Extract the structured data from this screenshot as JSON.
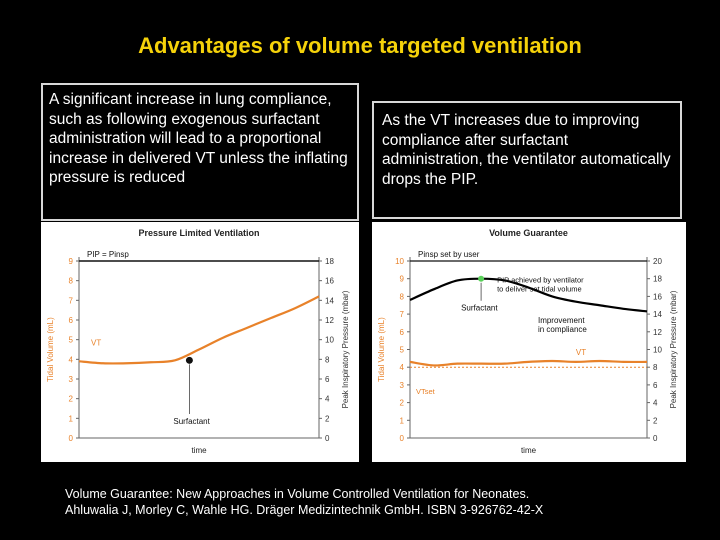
{
  "slide": {
    "title": "Advantages of volume targeted ventilation",
    "box_left_text": "A significant increase in lung compliance, such as following exogenous surfactant administration will lead to a proportional increase in delivered VT unless the inflating pressure is reduced",
    "box_right_text": "As the VT increases due to improving compliance after surfactant administration, the ventilator automatically drops the PIP.",
    "footer_line1": "Volume Guarantee: New Approaches in Volume Controlled Ventilation for Neonates.",
    "footer_line2": "Ahluwalia J, Morley C, Wahle HG.    Dräger Medizintechnik GmbH.    ISBN 3-926762-42-X"
  },
  "colors": {
    "title": "#f5d20a",
    "vt_curve": "#e8822a",
    "pip_curve": "#000000",
    "pip_dot": "#5ad05a"
  },
  "chart_data": [
    {
      "type": "line",
      "title": "Pressure Limited Ventilation",
      "xlabel": "time",
      "ylabel": "Tidal Volume (mL)",
      "y2label": "Peak Inspiratory Pressure (mbar)",
      "ylim": [
        0,
        9
      ],
      "y2lim": [
        0,
        18
      ],
      "yticks": [
        "0",
        "1",
        "2",
        "3",
        "4",
        "5",
        "6",
        "7",
        "8",
        "9"
      ],
      "y2ticks": [
        "0",
        "2",
        "4",
        "6",
        "8",
        "10",
        "12",
        "14",
        "16",
        "18"
      ],
      "annotations": {
        "pip_label": "PIP = Pinsp",
        "vt_label": "VT",
        "surfactant_label": "Surfactant"
      },
      "series": [
        {
          "name": "VT",
          "x": [
            0,
            1,
            2,
            3,
            4,
            5,
            6,
            7,
            8,
            9,
            10
          ],
          "values": [
            3.9,
            3.8,
            3.8,
            3.85,
            3.95,
            4.5,
            5.1,
            5.6,
            6.1,
            6.6,
            7.2
          ]
        },
        {
          "name": "PIP = Pinsp",
          "x": [
            0,
            10
          ],
          "values": [
            18,
            18
          ]
        }
      ],
      "surfactant_x": 4.6
    },
    {
      "type": "line",
      "title": "Volume Guarantee",
      "xlabel": "time",
      "ylabel": "Tidal Volume (mL)",
      "y2label": "Peak Inspiratory Pressure (mbar)",
      "ylim": [
        0,
        10
      ],
      "y2lim": [
        0,
        20
      ],
      "yticks": [
        "0",
        "1",
        "2",
        "3",
        "4",
        "5",
        "6",
        "7",
        "8",
        "9",
        "10"
      ],
      "y2ticks": [
        "0",
        "2",
        "4",
        "6",
        "8",
        "10",
        "12",
        "14",
        "16",
        "18",
        "20"
      ],
      "annotations": {
        "pinsp_label": "Pinsp set by user",
        "pip_note_line1": "PIP achieved by ventilator",
        "pip_note_line2": "to deliver set tidal volume",
        "surfactant_label": "Surfactant",
        "improvement_line1": "Improvement",
        "improvement_line2": "in compliance",
        "vt_label": "VT",
        "vtset_label": "VTset"
      },
      "series": [
        {
          "name": "Pinsp set by user",
          "x": [
            0,
            10
          ],
          "values": [
            20,
            20
          ]
        },
        {
          "name": "PIP",
          "x": [
            0,
            1,
            2,
            3,
            4,
            5,
            6,
            7,
            8,
            9,
            10
          ],
          "values": [
            15.6,
            16.8,
            17.8,
            18.0,
            17.8,
            17.0,
            16.0,
            15.4,
            15.0,
            14.6,
            14.3
          ]
        },
        {
          "name": "VT",
          "x": [
            0,
            1,
            2,
            3,
            4,
            5,
            6,
            7,
            8,
            9,
            10
          ],
          "values": [
            4.3,
            4.1,
            4.2,
            4.2,
            4.2,
            4.3,
            4.35,
            4.3,
            4.35,
            4.3,
            4.3
          ]
        }
      ],
      "vt_set": 4.0,
      "surfactant_x": 3.0
    }
  ]
}
